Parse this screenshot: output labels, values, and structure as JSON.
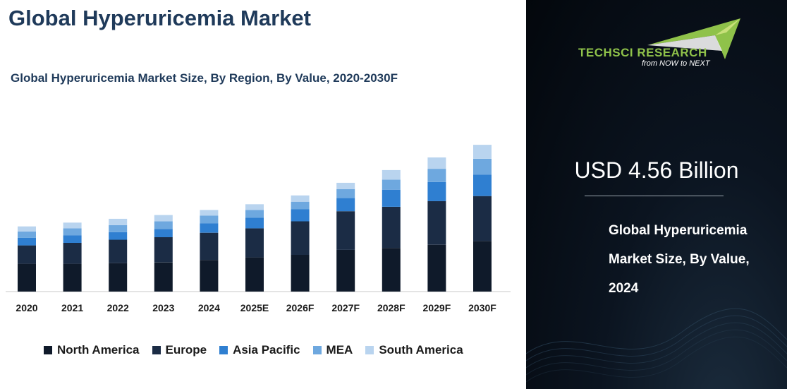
{
  "header": {
    "title": "Global Hyperuricemia Market",
    "chart_title": "Global Hyperuricemia Market Size, By Region, By Value, 2020-2030F"
  },
  "legend": [
    {
      "name": "North America",
      "color": "#0f1a2a"
    },
    {
      "name": "Europe",
      "color": "#1b2c45"
    },
    {
      "name": "Asia Pacific",
      "color": "#2f7fd1"
    },
    {
      "name": "MEA",
      "color": "#6ea8df"
    },
    {
      "name": "South America",
      "color": "#b9d4ef"
    }
  ],
  "chart_data": {
    "type": "bar",
    "stacked": true,
    "title": "Global Hyperuricemia Market Size, By Region, By Value, 2020-2030F",
    "categories": [
      "2020",
      "2021",
      "2022",
      "2023",
      "2024",
      "2025E",
      "2026F",
      "2027F",
      "2028F",
      "2029F",
      "2030F"
    ],
    "series": [
      {
        "name": "North America",
        "color": "#0f1a2a",
        "values": [
          44,
          44,
          45,
          46,
          50,
          54,
          58,
          66,
          69,
          74,
          80
        ]
      },
      {
        "name": "Europe",
        "color": "#1b2c45",
        "values": [
          29,
          33,
          37,
          40,
          43,
          46,
          53,
          61,
          65,
          69,
          71
        ]
      },
      {
        "name": "Asia Pacific",
        "color": "#2f7fd1",
        "values": [
          12,
          12,
          12,
          13,
          15,
          17,
          19,
          21,
          27,
          30,
          34
        ]
      },
      {
        "name": "MEA",
        "color": "#6ea8df",
        "values": [
          10,
          11,
          11,
          12,
          12,
          12,
          12,
          14,
          16,
          21,
          25
        ]
      },
      {
        "name": "South America",
        "color": "#b9d4ef",
        "values": [
          8,
          9,
          10,
          10,
          9,
          9,
          10,
          10,
          15,
          18,
          22
        ]
      }
    ],
    "ylim": [
      0,
      260
    ],
    "grid": false,
    "axis_labels_visible": false,
    "legend_position": "bottom"
  },
  "side_panel": {
    "logo_name": "TECHSCI RESEARCH",
    "logo_tagline": "from NOW to NEXT",
    "market_value": "USD 4.56 Billion",
    "value_description": "Global Hyperuricemia Market Size, By Value, 2024"
  }
}
